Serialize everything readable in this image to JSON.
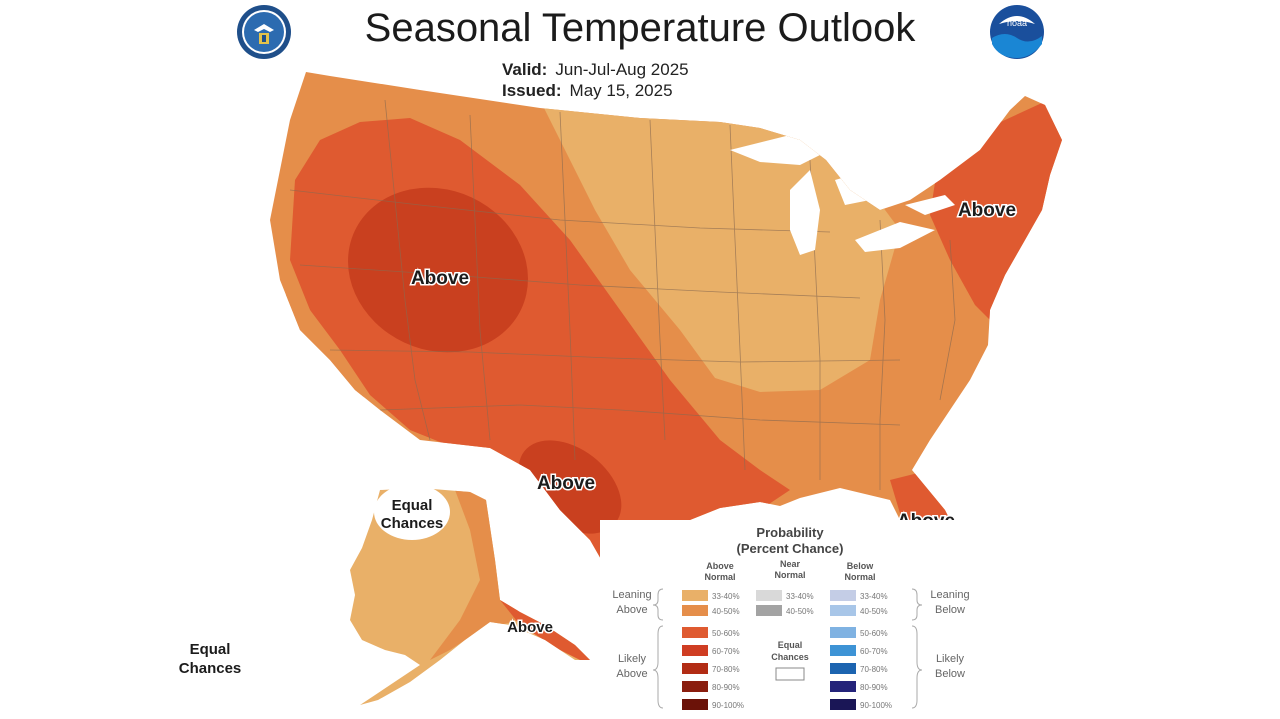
{
  "header": {
    "title": "Seasonal Temperature Outlook",
    "valid_label": "Valid:",
    "valid_value": "Jun-Jul-Aug 2025",
    "issued_label": "Issued:",
    "issued_value": "May 15, 2025"
  },
  "logos": {
    "left": "commerce-seal-icon",
    "right": "noaa-logo-icon",
    "right_text": "noaa"
  },
  "map_labels": {
    "west": "Above",
    "northeast": "Above",
    "texas": "Above",
    "florida": "Above",
    "alaska_se": "Above",
    "alaska_ec_line1": "Equal",
    "alaska_ec_line2": "Chances",
    "aleutian_ec_line1": "Equal",
    "aleutian_ec_line2": "Chances"
  },
  "legend": {
    "title_line1": "Probability",
    "title_line2": "(Percent Chance)",
    "col_above_1": "Above",
    "col_above_2": "Normal",
    "col_near_1": "Near",
    "col_near_2": "Normal",
    "col_below_1": "Below",
    "col_below_2": "Normal",
    "leaning_above_1": "Leaning",
    "leaning_above_2": "Above",
    "likely_above_1": "Likely",
    "likely_above_2": "Above",
    "leaning_below_1": "Leaning",
    "leaning_below_2": "Below",
    "likely_below_1": "Likely",
    "likely_below_2": "Below",
    "equal_1": "Equal",
    "equal_2": "Chances",
    "above_bins": [
      "33-40%",
      "40-50%",
      "50-60%",
      "60-70%",
      "70-80%",
      "80-90%",
      "90-100%"
    ],
    "near_bins": [
      "33-40%",
      "40-50%"
    ],
    "below_bins": [
      "33-40%",
      "40-50%",
      "50-60%",
      "60-70%",
      "70-80%",
      "80-90%",
      "90-100%"
    ]
  },
  "colors": {
    "above": [
      "#e9b068",
      "#e58e4a",
      "#df5a30",
      "#cf3d22",
      "#b22c14",
      "#8a1d0e",
      "#6b1208"
    ],
    "near": [
      "#d9d9d9",
      "#a3a3a3"
    ],
    "below": [
      "#c4cde6",
      "#a8c6e8",
      "#7fb2e2",
      "#3d93d5",
      "#1c64b0",
      "#24237a",
      "#1a1656"
    ],
    "water": "#ffffff",
    "border": "#8a6a50"
  }
}
